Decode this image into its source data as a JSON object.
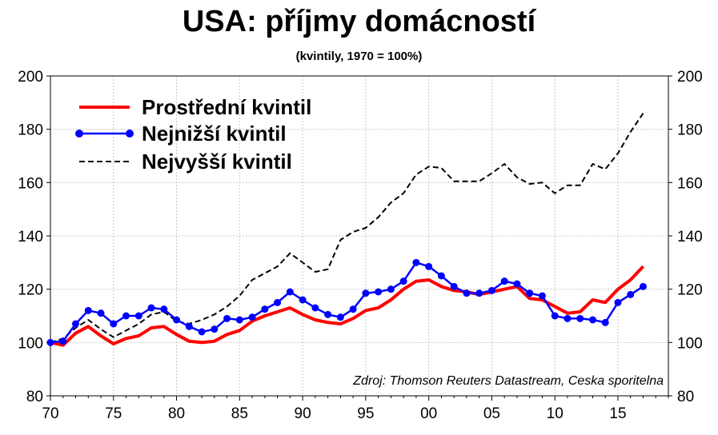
{
  "chart_data": {
    "type": "line",
    "title": "USA: příjmy domácností",
    "subtitle": "(kvintily, 1970 = 100%)",
    "source": "Zdroj: Thomson Reuters Datastream, Ceska sporitelna",
    "x_tick_labels": [
      "70",
      "75",
      "80",
      "85",
      "90",
      "95",
      "00",
      "05",
      "10",
      "15"
    ],
    "y_ticks": [
      80,
      100,
      120,
      140,
      160,
      180,
      200
    ],
    "ylim": [
      80,
      200
    ],
    "xlim": [
      1970,
      2019
    ],
    "grid": true,
    "dual_y_axis": true,
    "legend_position": "top-left",
    "x": [
      1970,
      1971,
      1972,
      1973,
      1974,
      1975,
      1976,
      1977,
      1978,
      1979,
      1980,
      1981,
      1982,
      1983,
      1984,
      1985,
      1986,
      1987,
      1988,
      1989,
      1990,
      1991,
      1992,
      1993,
      1994,
      1995,
      1996,
      1997,
      1998,
      1999,
      2000,
      2001,
      2002,
      2003,
      2004,
      2005,
      2006,
      2007,
      2008,
      2009,
      2010,
      2011,
      2012,
      2013,
      2014,
      2015,
      2016,
      2017
    ],
    "series": [
      {
        "name": "Prostřední kvintil",
        "color": "#ff0000",
        "style": "solid",
        "values": [
          100,
          99,
          103.5,
          106,
          102.5,
          99.5,
          101.5,
          102.5,
          105.5,
          106,
          103,
          100.5,
          100,
          100.5,
          103,
          104.5,
          108,
          110,
          111.5,
          113,
          110.5,
          108.5,
          107.5,
          107,
          109,
          112,
          113,
          116,
          120,
          123,
          123.5,
          121,
          119.5,
          119,
          118,
          119,
          120,
          121,
          116.5,
          116,
          113.5,
          111,
          111.5,
          116,
          115,
          120,
          123.5,
          128.5
        ]
      },
      {
        "name": "Nejnižší kvintil",
        "color": "#0000ff",
        "style": "solid-markers",
        "values": [
          100,
          100.5,
          107,
          112,
          111,
          107,
          110,
          110,
          113,
          112.5,
          108.5,
          106,
          104,
          105,
          109,
          108.5,
          109.5,
          112.5,
          115,
          119,
          116,
          113,
          110.5,
          109.5,
          112.5,
          118.5,
          119,
          120,
          123,
          130,
          128.5,
          125,
          121,
          118.5,
          118.5,
          119.5,
          123,
          122,
          118.5,
          117.5,
          110,
          109,
          109,
          108.5,
          107.5,
          115,
          118,
          121
        ]
      },
      {
        "name": "Nejvyšší kvintil",
        "color": "#000000",
        "style": "dashed",
        "values": [
          100,
          101.5,
          105.5,
          108.5,
          105,
          102,
          104.5,
          107,
          110.5,
          111.5,
          108,
          107,
          108.5,
          110.5,
          113.5,
          117.5,
          123.5,
          126,
          128.5,
          133.5,
          130,
          126.5,
          127.5,
          138.5,
          141.5,
          143,
          147,
          152.5,
          156,
          163,
          166,
          165.5,
          160.5,
          160.5,
          160.5,
          163.5,
          167,
          162,
          159.5,
          160,
          156,
          159,
          159,
          167,
          165,
          171,
          179,
          186
        ]
      }
    ]
  }
}
